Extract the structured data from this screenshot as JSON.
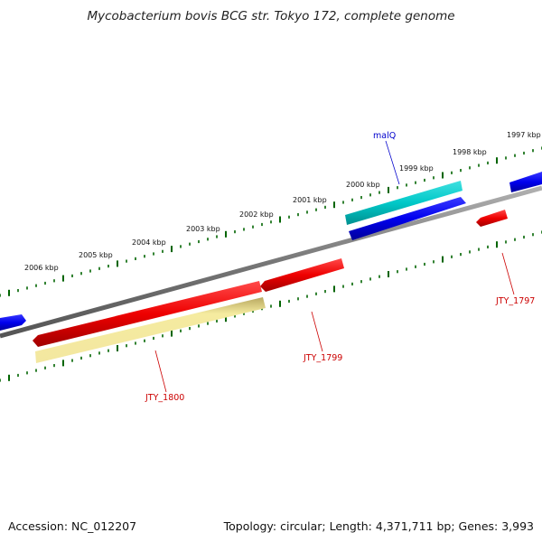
{
  "title": "Mycobacterium bovis BCG str. Tokyo 172, complete genome",
  "footer": {
    "accession": "Accession: NC_012207",
    "summary": "Topology: circular; Length: 4,371,711 bp; Genes: 3,993"
  },
  "ticks": [
    "1997 kbp",
    "1998 kbp",
    "1999 kbp",
    "2000 kbp",
    "2001 kbp",
    "2002 kbp",
    "2003 kbp",
    "2004 kbp",
    "2005 kbp",
    "2006 kbp"
  ],
  "gene_labels": {
    "malQ": "malQ",
    "jty1797": "JTY_1797",
    "jty1799": "JTY_1799",
    "jty1800": "JTY_1800"
  },
  "colors": {
    "backbone": "#808080",
    "forward_cds": "#0000ff",
    "reverse_cds": "#ff0000",
    "rna": "#00cccc",
    "pseudo": "#f0e68c",
    "ticks": "#006400",
    "label_blue": "#0000cc",
    "label_red": "#cc0000"
  }
}
